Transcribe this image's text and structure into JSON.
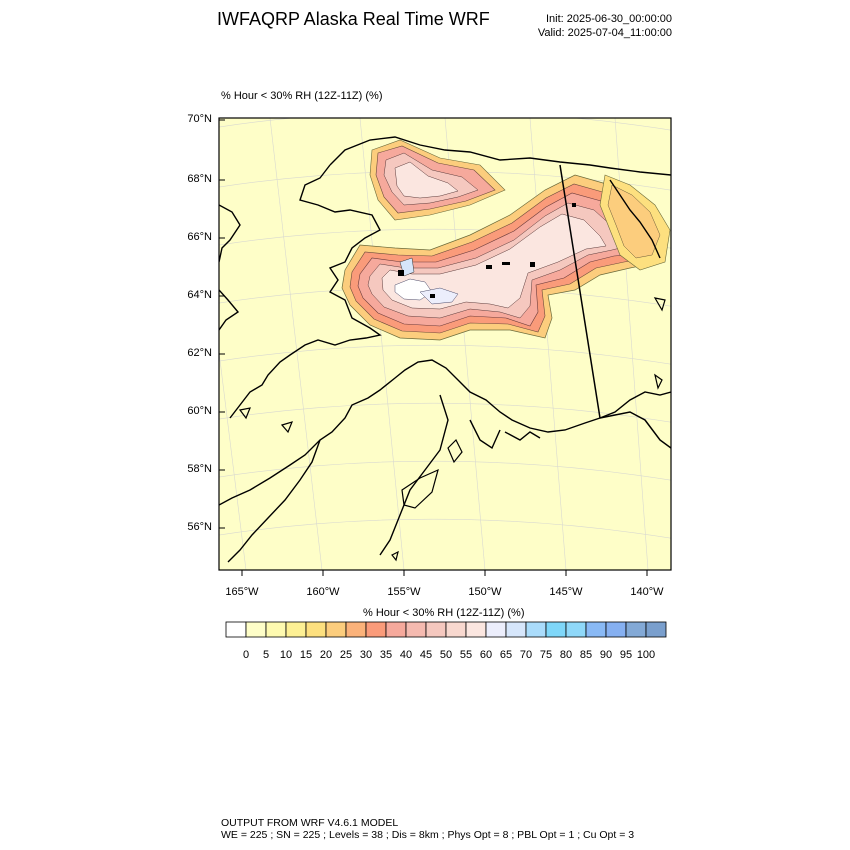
{
  "header": {
    "title": "IWFAQRP Alaska Real Time WRF",
    "init": "Init: 2025-06-30_00:00:00",
    "valid": "Valid: 2025-07-04_11:00:00"
  },
  "plot": {
    "field_label": "% Hour < 30% RH (12Z-11Z)   (%)"
  },
  "axes": {
    "lat_labels": [
      "70°N",
      "68°N",
      "66°N",
      "64°N",
      "62°N",
      "60°N",
      "58°N",
      "56°N"
    ],
    "lon_labels": [
      "165°W",
      "160°W",
      "155°W",
      "150°W",
      "145°W",
      "140°W"
    ]
  },
  "colorbar": {
    "title": "% Hour < 30% RH (12Z-11Z)  (%)",
    "ticks": [
      "0",
      "5",
      "10",
      "15",
      "20",
      "25",
      "30",
      "35",
      "40",
      "45",
      "50",
      "55",
      "60",
      "65",
      "70",
      "75",
      "80",
      "85",
      "90",
      "95",
      "100"
    ],
    "colors": [
      "#ffffff",
      "#fefec8",
      "#fefab0",
      "#fdf094",
      "#fde07f",
      "#fccd7d",
      "#fbb27a",
      "#fa9b7a",
      "#f6a99c",
      "#f5bab0",
      "#f5c8bf",
      "#f8d8cf",
      "#fbe6e0",
      "#eceefc",
      "#d6e6fb",
      "#aadcfb",
      "#7fd7f9",
      "#8fd8f9",
      "#89b9f5",
      "#86b0f1",
      "#83a9d6",
      "#7a9fcd"
    ]
  },
  "footer": {
    "line1": "OUTPUT FROM WRF V4.6.1 MODEL",
    "line2": "WE = 225 ; SN = 225 ; Levels = 38 ; Dis = 8km ; Phys Opt = 8 ; PBL Opt = 1 ; Cu Opt = 3"
  },
  "map": {
    "background": "#fefec8"
  }
}
